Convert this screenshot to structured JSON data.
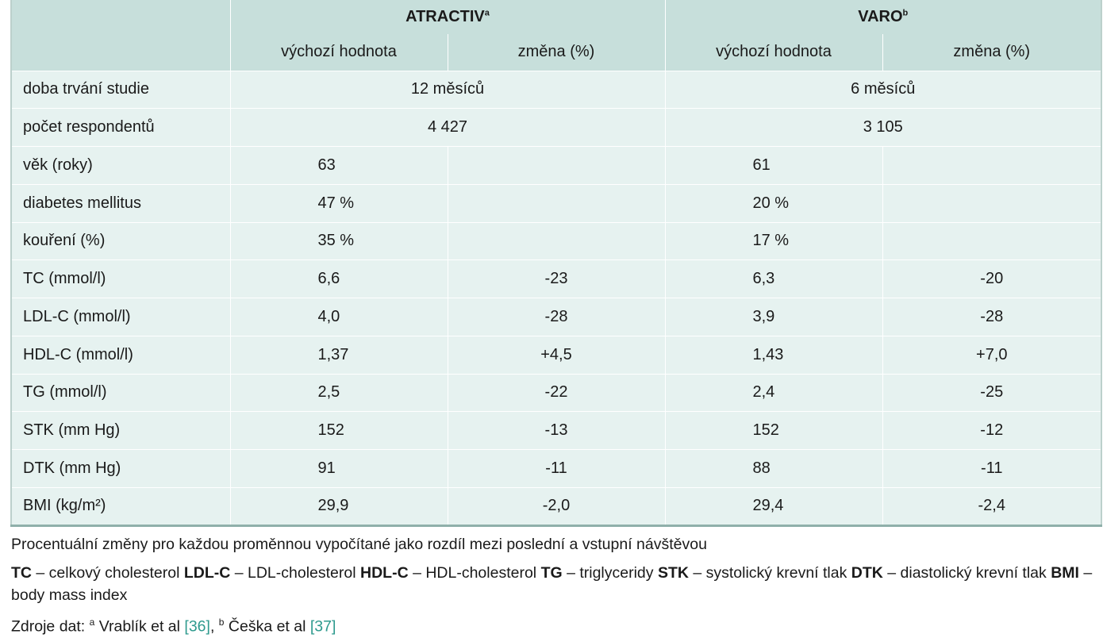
{
  "header": {
    "group_a": {
      "name": "ATRACTIV",
      "sup": "a"
    },
    "group_b": {
      "name": "VARO",
      "sup": "b"
    },
    "sub_baseline": "výchozí hodnota",
    "sub_change": "změna (%)"
  },
  "rows": [
    {
      "label": "doba trvání studie",
      "span_a": "12 měsíců",
      "span_b": "6 měsíců"
    },
    {
      "label": "počet respondentů",
      "span_a": "4 427",
      "span_b": "3 105"
    },
    {
      "label": "věk (roky)",
      "a_base": "63",
      "a_change": "",
      "b_base": "61",
      "b_change": ""
    },
    {
      "label": "diabetes mellitus",
      "a_base": "47 %",
      "a_change": "",
      "b_base": "20 %",
      "b_change": ""
    },
    {
      "label": "kouření (%)",
      "a_base": "35 %",
      "a_change": "",
      "b_base": "17 %",
      "b_change": ""
    },
    {
      "label": "TC (mmol/l)",
      "a_base": "6,6",
      "a_change": "-23",
      "b_base": "6,3",
      "b_change": "-20"
    },
    {
      "label": "LDL-C (mmol/l)",
      "a_base": "4,0",
      "a_change": "-28",
      "b_base": "3,9",
      "b_change": "-28"
    },
    {
      "label": "HDL-C (mmol/l)",
      "a_base": "1,37",
      "a_change": "+4,5",
      "b_base": "1,43",
      "b_change": "+7,0"
    },
    {
      "label": "TG (mmol/l)",
      "a_base": "2,5",
      "a_change": "-22",
      "b_base": "2,4",
      "b_change": "-25"
    },
    {
      "label": "STK (mm Hg)",
      "a_base": "152",
      "a_change": "-13",
      "b_base": "152",
      "b_change": "-12"
    },
    {
      "label": "DTK (mm Hg)",
      "a_base": "91",
      "a_change": "-11",
      "b_base": "88",
      "b_change": "-11"
    },
    {
      "label": "BMI (kg/m²)",
      "a_base": "29,9",
      "a_change": "-2,0",
      "b_base": "29,4",
      "b_change": "-2,4"
    }
  ],
  "notes": {
    "line1": "Procentuální změny pro každou proměnnou vypočítané jako rozdíl mezi poslední a vstupní návštěvou",
    "abbrev": [
      {
        "term": "TC",
        "def": " – celkový cholesterol "
      },
      {
        "term": "LDL-C",
        "def": " – LDL-cholesterol "
      },
      {
        "term": "HDL-C",
        "def": " – HDL-cholesterol "
      },
      {
        "term": "TG",
        "def": " – triglyceridy "
      },
      {
        "term": "STK",
        "def": " – systolický krevní tlak "
      },
      {
        "term": "DTK",
        "def": " – diastolický krevní tlak "
      },
      {
        "term": "BMI",
        "def": " – body mass index"
      }
    ],
    "sources_prefix": "Zdroje dat: ",
    "src_a_sup": "a",
    "src_a_text": " Vrablík et al ",
    "src_a_ref": "[36]",
    "src_sep": ", ",
    "src_b_sup": "b",
    "src_b_text": " Češka et al ",
    "src_b_ref": "[37]"
  }
}
